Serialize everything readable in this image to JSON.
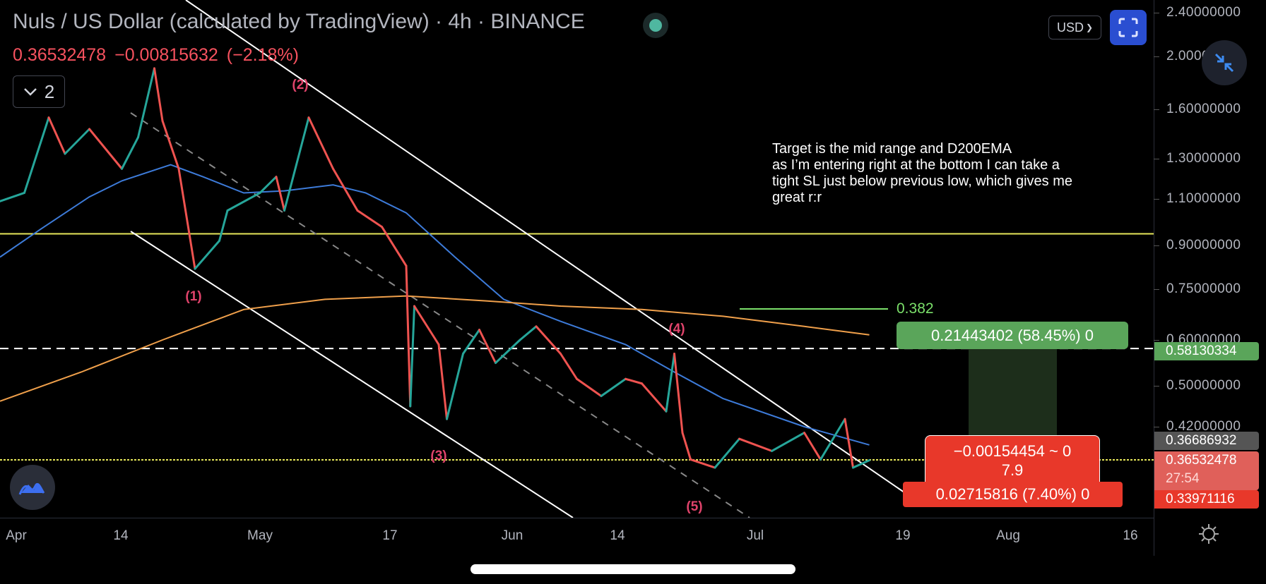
{
  "header": {
    "title": "Nuls / US Dollar (calculated by TradingView) · 4h · BINANCE",
    "last_price": "0.36532478",
    "change": "−0.00815632",
    "change_pct": "(−2.18%)",
    "collapse_count": "2",
    "currency": "USD",
    "status_color": "#4fb7a0"
  },
  "annotation": {
    "lines": [
      "Target is the mid range and D200EMA",
      "as I’m entering right at the bottom I can take a",
      "tight SL just below previous low, which gives me",
      "great r:r"
    ]
  },
  "waves": [
    "(1)",
    "(2)",
    "(3)",
    "(4)",
    "(5)"
  ],
  "fib": {
    "label": "0.382"
  },
  "position": {
    "target_text": "0.21443402 (58.45%) 0",
    "stop_line1": "−0.00154454 ~ 0",
    "stop_line2": "7.9",
    "stop_text": "0.02715816 (7.40%) 0"
  },
  "price_labels": {
    "target": "0.58130334",
    "ema": "0.36686932",
    "last": "0.36532478",
    "countdown": "27:54",
    "stop": "0.33971116"
  },
  "colors": {
    "up": "#26a69a",
    "down": "#ef5350",
    "ema_short": "#3d7bd9",
    "ema_long": "#f0a04b",
    "horizontal": "#e6e65a",
    "target": "#5aa55a",
    "stop": "#e8382a",
    "accent": "#2a4ed1"
  },
  "icons": [
    "chevron-down-icon",
    "fullscreen-icon",
    "compress-icon",
    "tradingview-logo-icon",
    "gear-icon"
  ],
  "chart_data": {
    "type": "line",
    "title": "Nuls / US Dollar (calculated by TradingView) · 4h · BINANCE",
    "y_scale": "compressed/log-like",
    "y_ticks": [
      "2.40000000",
      "2.00000000",
      "1.60000000",
      "1.30000000",
      "1.10000000",
      "0.90000000",
      "0.75000000",
      "0.60000000",
      "0.50000000",
      "0.42000000"
    ],
    "x_ticks": [
      "Apr",
      "14",
      "May",
      "17",
      "Jun",
      "14",
      "Jul",
      "19",
      "Aug",
      "16"
    ],
    "grid": false,
    "series": [
      {
        "style": "candles",
        "points": [
          [
            "2021-03-30",
            1.09
          ],
          [
            "2021-04-02",
            1.13
          ],
          [
            "2021-04-05",
            1.55
          ],
          [
            "2021-04-07",
            1.33
          ],
          [
            "2021-04-10",
            1.48
          ],
          [
            "2021-04-14",
            1.25
          ],
          [
            "2021-04-16",
            1.43
          ],
          [
            "2021-04-18",
            1.91
          ],
          [
            "2021-04-19",
            1.53
          ],
          [
            "2021-04-21",
            1.25
          ],
          [
            "2021-04-23",
            0.82
          ],
          [
            "2021-04-26",
            0.92
          ],
          [
            "2021-04-27",
            1.05
          ],
          [
            "2021-05-01",
            1.13
          ],
          [
            "2021-05-03",
            1.21
          ],
          [
            "2021-05-04",
            1.05
          ],
          [
            "2021-05-07",
            1.55
          ],
          [
            "2021-05-10",
            1.25
          ],
          [
            "2021-05-13",
            1.05
          ],
          [
            "2021-05-16",
            0.98
          ],
          [
            "2021-05-19",
            0.83
          ],
          [
            "2021-05-19T12",
            0.46
          ],
          [
            "2021-05-20",
            0.7
          ],
          [
            "2021-05-23",
            0.59
          ],
          [
            "2021-05-24",
            0.435
          ],
          [
            "2021-05-26",
            0.57
          ],
          [
            "2021-05-28",
            0.63
          ],
          [
            "2021-05-30",
            0.55
          ],
          [
            "2021-06-02",
            0.6
          ],
          [
            "2021-06-04",
            0.64
          ],
          [
            "2021-06-07",
            0.57
          ],
          [
            "2021-06-09",
            0.515
          ],
          [
            "2021-06-12",
            0.48
          ],
          [
            "2021-06-15",
            0.515
          ],
          [
            "2021-06-17",
            0.505
          ],
          [
            "2021-06-20",
            0.45
          ],
          [
            "2021-06-21",
            0.57
          ],
          [
            "2021-06-22",
            0.41
          ],
          [
            "2021-06-23",
            0.366
          ],
          [
            "2021-06-26",
            0.36
          ],
          [
            "2021-06-29",
            0.4
          ],
          [
            "2021-07-03",
            0.38
          ],
          [
            "2021-07-07",
            0.41
          ],
          [
            "2021-07-09",
            0.366
          ],
          [
            "2021-07-12",
            0.435
          ],
          [
            "2021-07-13",
            0.36
          ],
          [
            "2021-07-15",
            0.365
          ]
        ]
      },
      {
        "style": "ema-short",
        "points": [
          [
            "2021-03-30",
            0.86
          ],
          [
            "2021-04-04",
            0.97
          ],
          [
            "2021-04-10",
            1.11
          ],
          [
            "2021-04-14",
            1.19
          ],
          [
            "2021-04-20",
            1.27
          ],
          [
            "2021-04-24",
            1.21
          ],
          [
            "2021-04-29",
            1.13
          ],
          [
            "2021-05-04",
            1.14
          ],
          [
            "2021-05-10",
            1.17
          ],
          [
            "2021-05-14",
            1.13
          ],
          [
            "2021-05-19",
            1.04
          ],
          [
            "2021-05-25",
            0.86
          ],
          [
            "2021-05-31",
            0.72
          ],
          [
            "2021-06-07",
            0.655
          ],
          [
            "2021-06-15",
            0.59
          ],
          [
            "2021-06-21",
            0.53
          ],
          [
            "2021-06-27",
            0.475
          ],
          [
            "2021-07-07",
            0.42
          ],
          [
            "2021-07-15",
            0.39
          ]
        ]
      },
      {
        "style": "ema-long",
        "points": [
          [
            "2021-03-30",
            0.47
          ],
          [
            "2021-04-09",
            0.53
          ],
          [
            "2021-04-19",
            0.6
          ],
          [
            "2021-04-29",
            0.69
          ],
          [
            "2021-05-09",
            0.72
          ],
          [
            "2021-05-19",
            0.73
          ],
          [
            "2021-05-29",
            0.715
          ],
          [
            "2021-06-07",
            0.7
          ],
          [
            "2021-06-17",
            0.69
          ],
          [
            "2021-06-27",
            0.67
          ],
          [
            "2021-07-07",
            0.64
          ],
          [
            "2021-07-15",
            0.615
          ]
        ]
      }
    ],
    "horizontal_levels": [
      0.95,
      0.58130334,
      0.36532478
    ]
  }
}
